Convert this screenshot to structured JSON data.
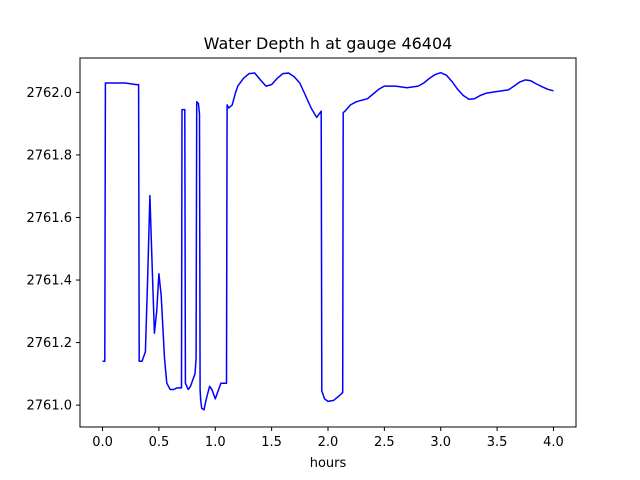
{
  "chart_data": {
    "type": "line",
    "title": "Water Depth h at gauge 46404",
    "xlabel": "hours",
    "ylabel": "",
    "xlim": [
      -0.2,
      4.2
    ],
    "ylim": [
      2760.93,
      2762.11
    ],
    "x_ticks": [
      0.0,
      0.5,
      1.0,
      1.5,
      2.0,
      2.5,
      3.0,
      3.5,
      4.0
    ],
    "x_tick_labels": [
      "0.0",
      "0.5",
      "1.0",
      "1.5",
      "2.0",
      "2.5",
      "3.0",
      "3.5",
      "4.0"
    ],
    "y_ticks": [
      2761.0,
      2761.2,
      2761.4,
      2761.6,
      2761.8,
      2762.0
    ],
    "y_tick_labels": [
      "2761.0",
      "2761.2",
      "2761.4",
      "2761.6",
      "2761.8",
      "2762.0"
    ],
    "grid": false,
    "series": [
      {
        "color": "#0000ff",
        "x": [
          0.0,
          0.02,
          0.025,
          0.05,
          0.1,
          0.2,
          0.3,
          0.32,
          0.325,
          0.35,
          0.38,
          0.4,
          0.42,
          0.44,
          0.46,
          0.48,
          0.5,
          0.52,
          0.55,
          0.57,
          0.6,
          0.63,
          0.66,
          0.7,
          0.705,
          0.72,
          0.73,
          0.735,
          0.76,
          0.78,
          0.8,
          0.82,
          0.83,
          0.835,
          0.85,
          0.86,
          0.865,
          0.87,
          0.88,
          0.9,
          0.92,
          0.95,
          0.97,
          1.0,
          1.02,
          1.05,
          1.08,
          1.1,
          1.105,
          1.12,
          1.15,
          1.18,
          1.2,
          1.25,
          1.3,
          1.35,
          1.4,
          1.45,
          1.5,
          1.55,
          1.6,
          1.65,
          1.7,
          1.75,
          1.8,
          1.85,
          1.9,
          1.94,
          1.945,
          1.97,
          2.0,
          2.05,
          2.1,
          2.13,
          2.135,
          2.15,
          2.2,
          2.25,
          2.3,
          2.35,
          2.4,
          2.45,
          2.5,
          2.6,
          2.7,
          2.8,
          2.85,
          2.9,
          2.95,
          3.0,
          3.05,
          3.1,
          3.15,
          3.2,
          3.25,
          3.3,
          3.35,
          3.4,
          3.5,
          3.6,
          3.65,
          3.7,
          3.75,
          3.8,
          3.85,
          3.9,
          3.95,
          4.0
        ],
        "y": [
          2761.14,
          2761.14,
          2762.03,
          2762.03,
          2762.03,
          2762.03,
          2762.025,
          2762.025,
          2761.14,
          2761.14,
          2761.17,
          2761.4,
          2761.67,
          2761.45,
          2761.23,
          2761.3,
          2761.42,
          2761.35,
          2761.15,
          2761.07,
          2761.05,
          2761.05,
          2761.055,
          2761.055,
          2761.945,
          2761.945,
          2761.945,
          2761.07,
          2761.05,
          2761.06,
          2761.08,
          2761.1,
          2761.15,
          2761.97,
          2761.965,
          2761.93,
          2761.05,
          2761.02,
          2760.99,
          2760.985,
          2761.02,
          2761.06,
          2761.05,
          2761.02,
          2761.04,
          2761.07,
          2761.07,
          2761.07,
          2761.96,
          2761.95,
          2761.96,
          2762.0,
          2762.02,
          2762.045,
          2762.06,
          2762.062,
          2762.04,
          2762.02,
          2762.025,
          2762.045,
          2762.06,
          2762.062,
          2762.05,
          2762.03,
          2761.99,
          2761.95,
          2761.92,
          2761.94,
          2761.045,
          2761.02,
          2761.012,
          2761.015,
          2761.03,
          2761.04,
          2761.935,
          2761.94,
          2761.96,
          2761.97,
          2761.975,
          2761.98,
          2761.995,
          2762.01,
          2762.02,
          2762.02,
          2762.015,
          2762.02,
          2762.03,
          2762.045,
          2762.057,
          2762.063,
          2762.055,
          2762.035,
          2762.01,
          2761.99,
          2761.978,
          2761.98,
          2761.99,
          2761.997,
          2762.003,
          2762.008,
          2762.02,
          2762.033,
          2762.04,
          2762.037,
          2762.027,
          2762.018,
          2762.01,
          2762.005
        ]
      }
    ]
  }
}
